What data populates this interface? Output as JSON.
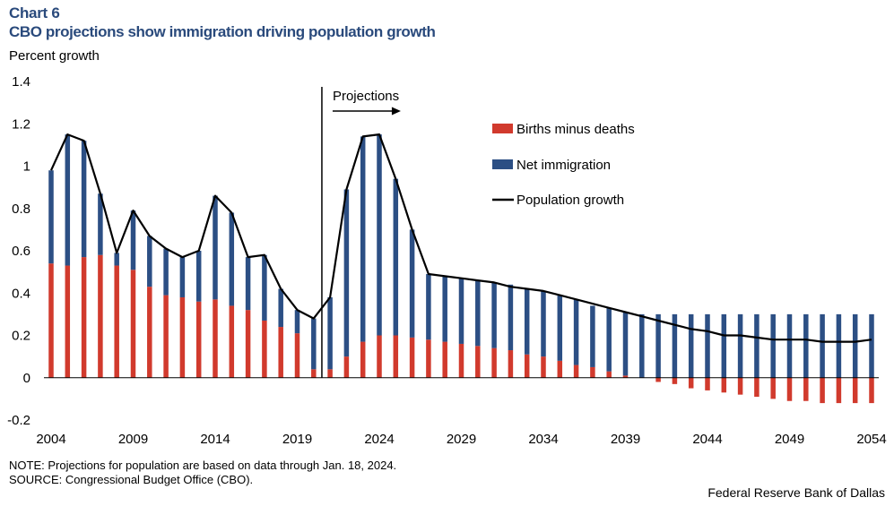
{
  "header": {
    "chart_number": "Chart 6",
    "title": "CBO projections show immigration driving population growth"
  },
  "footer": {
    "note": "NOTE: Projections for population are based on data through Jan. 18, 2024.",
    "source": "SOURCE: Congressional Budget Office (CBO).",
    "credit": "Federal Reserve Bank of Dallas"
  },
  "colors": {
    "births_minus_deaths": "#d13a2d",
    "net_immigration": "#2c4f84",
    "population_growth": "#000000"
  },
  "chart_data": {
    "type": "bar",
    "title": "CBO projections show immigration driving population growth",
    "ylabel": "Percent growth",
    "xlabel": "",
    "ylim": [
      -0.2,
      1.4
    ],
    "yticks": [
      "-0.2",
      "0",
      "0.2",
      "0.4",
      "0.6",
      "0.8",
      "1",
      "1.2",
      "1.4"
    ],
    "xticks": [
      "2004",
      "2009",
      "2014",
      "2019",
      "2024",
      "2029",
      "2034",
      "2039",
      "2044",
      "2049",
      "2054"
    ],
    "annotation": "Projections",
    "projection_start": 2020.5,
    "stacked": true,
    "grid": false,
    "legend_position": "top-right",
    "categories": [
      2004,
      2005,
      2006,
      2007,
      2008,
      2009,
      2010,
      2011,
      2012,
      2013,
      2014,
      2015,
      2016,
      2017,
      2018,
      2019,
      2020,
      2021,
      2022,
      2023,
      2024,
      2025,
      2026,
      2027,
      2028,
      2029,
      2030,
      2031,
      2032,
      2033,
      2034,
      2035,
      2036,
      2037,
      2038,
      2039,
      2040,
      2041,
      2042,
      2043,
      2044,
      2045,
      2046,
      2047,
      2048,
      2049,
      2050,
      2051,
      2052,
      2053,
      2054
    ],
    "series": [
      {
        "name": "Births minus deaths",
        "kind": "bar",
        "values": [
          0.54,
          0.53,
          0.57,
          0.58,
          0.53,
          0.51,
          0.43,
          0.39,
          0.38,
          0.36,
          0.37,
          0.34,
          0.32,
          0.27,
          0.24,
          0.21,
          0.04,
          0.04,
          0.1,
          0.17,
          0.2,
          0.2,
          0.19,
          0.18,
          0.17,
          0.16,
          0.15,
          0.14,
          0.13,
          0.11,
          0.1,
          0.08,
          0.06,
          0.05,
          0.03,
          0.01,
          0.0,
          -0.02,
          -0.03,
          -0.05,
          -0.06,
          -0.07,
          -0.08,
          -0.09,
          -0.1,
          -0.11,
          -0.11,
          -0.12,
          -0.12,
          -0.12,
          -0.12
        ]
      },
      {
        "name": "Net immigration",
        "kind": "bar",
        "values": [
          0.44,
          0.62,
          0.55,
          0.29,
          0.06,
          0.28,
          0.24,
          0.22,
          0.19,
          0.24,
          0.49,
          0.44,
          0.25,
          0.31,
          0.18,
          0.11,
          0.24,
          0.34,
          0.79,
          0.97,
          0.95,
          0.74,
          0.51,
          0.31,
          0.31,
          0.31,
          0.31,
          0.31,
          0.31,
          0.31,
          0.31,
          0.31,
          0.31,
          0.29,
          0.3,
          0.3,
          0.3,
          0.3,
          0.3,
          0.3,
          0.3,
          0.3,
          0.3,
          0.3,
          0.3,
          0.3,
          0.3,
          0.3,
          0.3,
          0.3,
          0.3
        ]
      },
      {
        "name": "Population growth",
        "kind": "line",
        "values": [
          0.98,
          1.15,
          1.12,
          0.87,
          0.59,
          0.79,
          0.67,
          0.61,
          0.57,
          0.6,
          0.86,
          0.78,
          0.57,
          0.58,
          0.42,
          0.32,
          0.28,
          0.38,
          0.89,
          1.14,
          1.15,
          0.94,
          0.7,
          0.49,
          0.48,
          0.47,
          0.46,
          0.45,
          0.43,
          0.42,
          0.41,
          0.39,
          0.37,
          0.35,
          0.33,
          0.31,
          0.29,
          0.27,
          0.25,
          0.23,
          0.22,
          0.2,
          0.2,
          0.19,
          0.18,
          0.18,
          0.18,
          0.17,
          0.17,
          0.17,
          0.18
        ]
      }
    ]
  }
}
